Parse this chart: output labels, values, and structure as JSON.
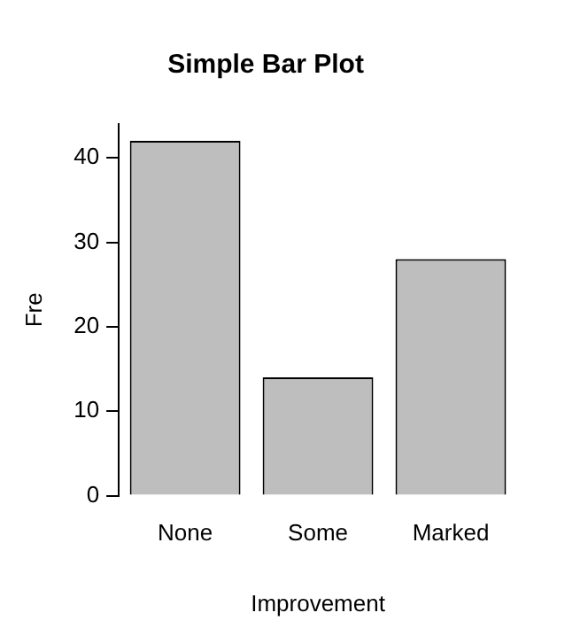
{
  "chart_data": {
    "type": "bar",
    "title": "Simple Bar Plot",
    "xlabel": "Improvement",
    "ylabel": "Fre",
    "categories": [
      "None",
      "Some",
      "Marked"
    ],
    "values": [
      42,
      14,
      28
    ],
    "color": "#bebebe",
    "ylim": [
      0,
      44
    ],
    "yticks": [
      0,
      10,
      20,
      30,
      40
    ],
    "grid": false,
    "legend": false
  }
}
